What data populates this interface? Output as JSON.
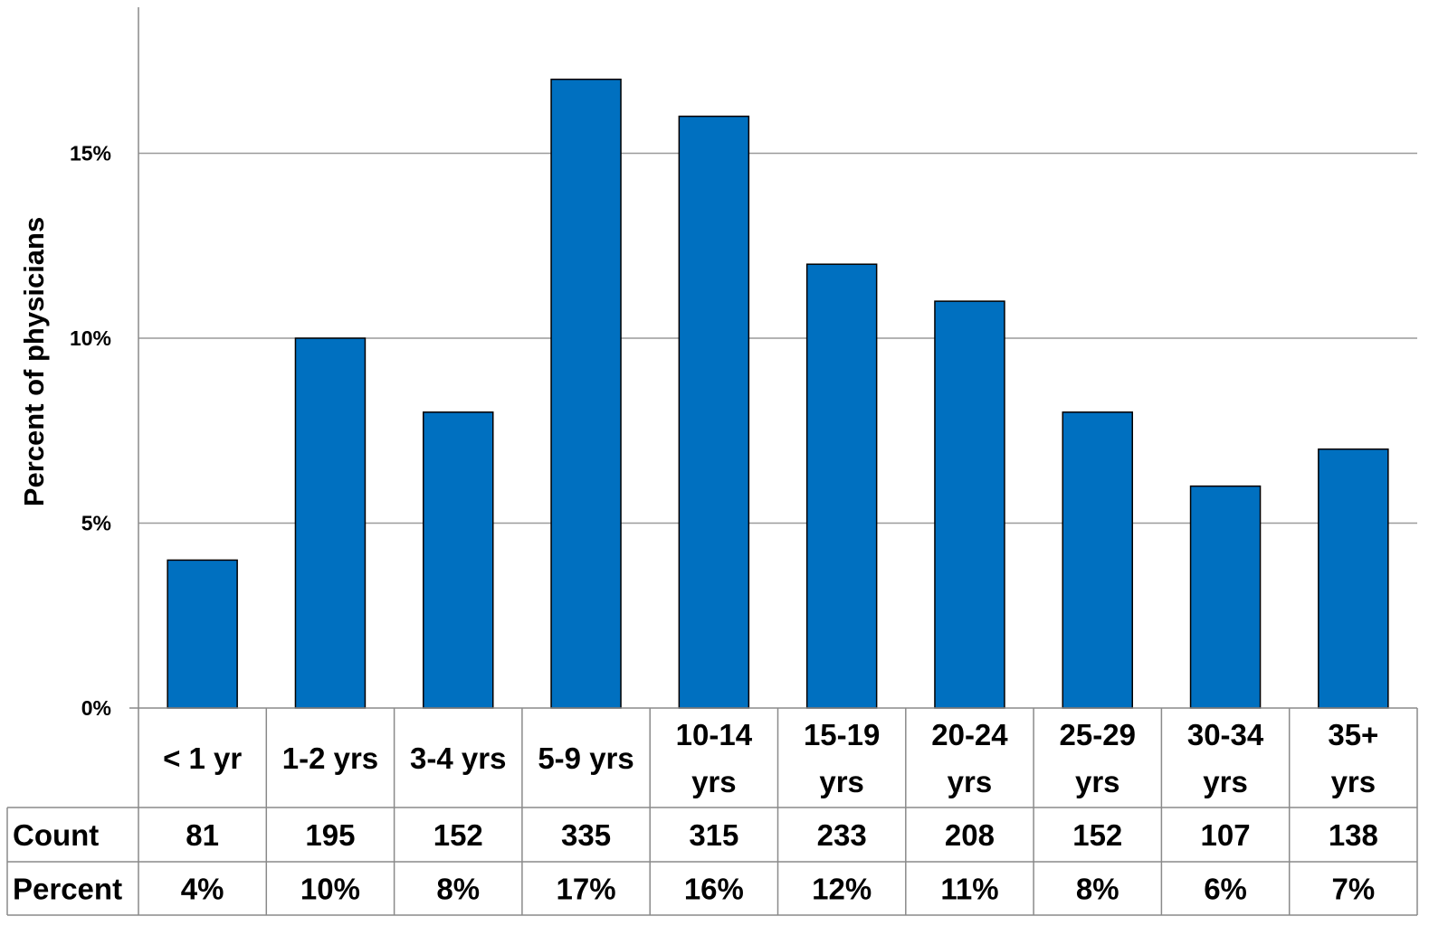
{
  "chart_data": {
    "type": "bar",
    "title": "",
    "xlabel": "",
    "ylabel": "Percent of physicians",
    "ylim": [
      0,
      19
    ],
    "y_ticks": [
      0,
      5,
      10,
      15
    ],
    "y_tick_labels": [
      "0%",
      "5%",
      "10%",
      "15%"
    ],
    "grid": true,
    "legend": "none",
    "bar_color": "#0070c0",
    "categories": [
      [
        "< 1 yr"
      ],
      [
        "1-2 yrs"
      ],
      [
        "3-4 yrs"
      ],
      [
        "5-9 yrs"
      ],
      [
        "10-14",
        "yrs"
      ],
      [
        "15-19",
        "yrs"
      ],
      [
        "20-24",
        "yrs"
      ],
      [
        "25-29",
        "yrs"
      ],
      [
        "30-34",
        "yrs"
      ],
      [
        "35+",
        "yrs"
      ]
    ],
    "values": [
      4,
      10,
      8,
      17,
      16,
      12,
      11,
      8,
      6,
      7
    ],
    "table": {
      "rows": [
        {
          "label": "Count",
          "cells": [
            "81",
            "195",
            "152",
            "335",
            "315",
            "233",
            "208",
            "152",
            "107",
            "138"
          ]
        },
        {
          "label": "Percent",
          "cells": [
            "4%",
            "10%",
            "8%",
            "17%",
            "16%",
            "12%",
            "11%",
            "8%",
            "6%",
            "7%"
          ]
        }
      ]
    }
  }
}
